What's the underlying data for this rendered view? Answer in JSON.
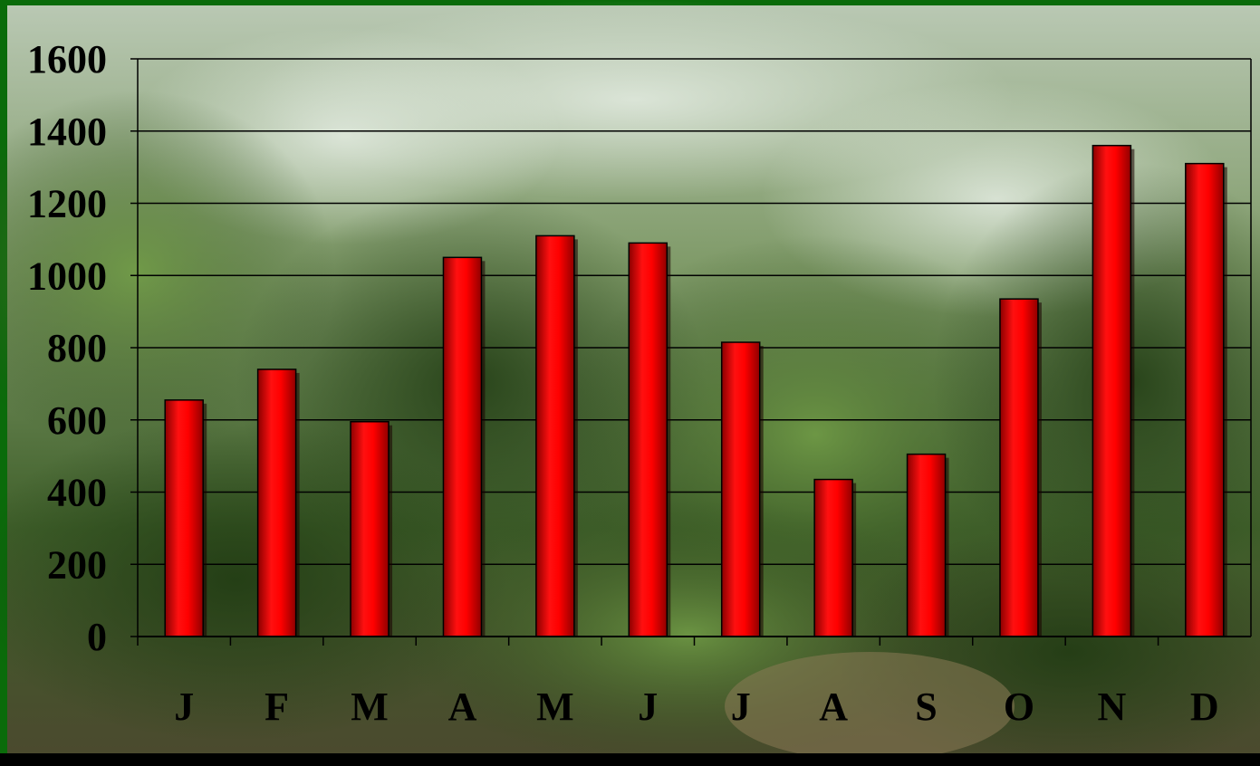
{
  "colors": {
    "frame": "#0a6b0a",
    "bar": "#ff0000",
    "bar_shadow": "#7a0000",
    "grid": "#000000",
    "bottom_band": "#000000",
    "foliage_dark": "#2f4a1c",
    "foliage_mid": "#5a7a3a",
    "sky": "#cfd8cc"
  },
  "background": {
    "description_icon": "coffee-plantation-photo"
  },
  "chart_data": {
    "type": "bar",
    "categories": [
      "J",
      "F",
      "M",
      "A",
      "M",
      "J",
      "J",
      "A",
      "S",
      "O",
      "N",
      "D"
    ],
    "values": [
      655,
      740,
      595,
      1050,
      1110,
      1090,
      815,
      435,
      505,
      935,
      1360,
      1310
    ],
    "title": "",
    "xlabel": "",
    "ylabel": "",
    "ylim": [
      0,
      1600
    ],
    "yticks": [
      "0",
      "200",
      "400",
      "600",
      "800",
      "1000",
      "1200",
      "1400",
      "1600"
    ],
    "grid": true,
    "legend": "none"
  }
}
